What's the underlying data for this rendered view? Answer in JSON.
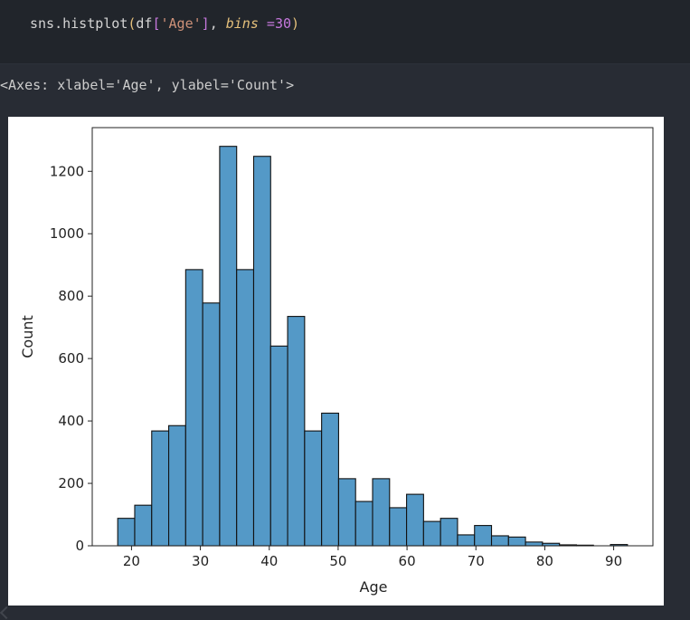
{
  "code_cell": {
    "fn": "sns.histplot",
    "open_paren": "(",
    "arg_obj": "df",
    "open_br": "[",
    "arg_key": "'Age'",
    "close_br": "]",
    "comma": ", ",
    "kw": "bins",
    "op": " =",
    "num": "30",
    "close_paren": ")"
  },
  "output": {
    "text": "<Axes: xlabel='Age', ylabel='Count'>"
  },
  "colors": {
    "bar_fill": "#5499c7",
    "bar_edge": "#111111"
  },
  "chart_data": {
    "type": "bar",
    "xlabel": "Age",
    "ylabel": "Count",
    "xlim": [
      14.3,
      95.7
    ],
    "ylim": [
      0,
      1340
    ],
    "xticks": [
      20,
      30,
      40,
      50,
      60,
      70,
      80,
      90
    ],
    "yticks": [
      0,
      200,
      400,
      600,
      800,
      1000,
      1200
    ],
    "bin_start": 18,
    "bin_width": 2.4667,
    "values": [
      88,
      130,
      368,
      385,
      885,
      778,
      1280,
      885,
      1248,
      640,
      735,
      368,
      425,
      215,
      142,
      215,
      122,
      165,
      78,
      88,
      35,
      65,
      32,
      28,
      12,
      8,
      3,
      2,
      0,
      4
    ]
  }
}
